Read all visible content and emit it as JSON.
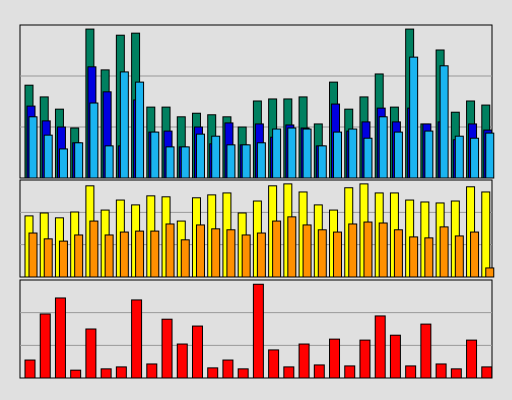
{
  "chart_data": [
    {
      "type": "bar",
      "ylim": [
        0,
        3
      ],
      "yticks": [
        1,
        2
      ],
      "grid": true,
      "series": [
        {
          "color": "#008060",
          "values": [
            1.82,
            1.59,
            1.35,
            0.98,
            2.92,
            2.12,
            2.8,
            2.84,
            1.39,
            1.39,
            1.2,
            1.27,
            1.24,
            1.2,
            1.0,
            1.51,
            1.55,
            1.55,
            1.59,
            1.06,
            1.88,
            1.35,
            1.59,
            2.04,
            1.39,
            2.92,
            1.06,
            2.51,
            1.29,
            1.51,
            1.43
          ]
        },
        {
          "color": "#0000e0",
          "values": [
            1.41,
            1.12,
            1.0,
            0.69,
            2.18,
            1.69,
            0.63,
            1.53,
            0.9,
            0.92,
            0.61,
            1.0,
            0.67,
            1.08,
            0.65,
            1.06,
            0.8,
            1.04,
            0.98,
            0.63,
            1.45,
            0.92,
            1.1,
            1.37,
            1.1,
            1.37,
            1.06,
            1.1,
            0.75,
            1.06,
            0.94
          ]
        },
        {
          "color": "#1ab4f0",
          "values": [
            1.2,
            0.84,
            0.57,
            0.69,
            1.47,
            0.63,
            2.08,
            1.88,
            0.9,
            0.61,
            0.61,
            0.86,
            0.82,
            0.65,
            0.65,
            0.69,
            0.96,
            0.98,
            0.96,
            0.63,
            0.9,
            0.96,
            0.78,
            1.2,
            0.9,
            2.37,
            0.92,
            2.2,
            0.82,
            0.78,
            0.88
          ]
        }
      ]
    },
    {
      "type": "bar",
      "ylim": [
        0,
        3
      ],
      "yticks": [
        1,
        2
      ],
      "grid": true,
      "series": [
        {
          "color": "#ffff00",
          "values": [
            1.89,
            1.98,
            1.83,
            2.01,
            2.82,
            2.07,
            2.38,
            2.23,
            2.51,
            2.48,
            1.73,
            2.45,
            2.54,
            2.6,
            1.98,
            2.35,
            2.82,
            2.88,
            2.63,
            2.23,
            2.07,
            2.76,
            2.88,
            2.6,
            2.6,
            2.38,
            2.32,
            2.29,
            2.35,
            2.79,
            2.63
          ]
        },
        {
          "color": "#ff9000",
          "values": [
            1.36,
            1.18,
            1.11,
            1.3,
            1.73,
            1.3,
            1.39,
            1.42,
            1.42,
            1.64,
            1.15,
            1.61,
            1.49,
            1.46,
            1.3,
            1.36,
            1.73,
            1.86,
            1.61,
            1.46,
            1.39,
            1.64,
            1.7,
            1.67,
            1.46,
            1.24,
            1.21,
            1.55,
            1.27,
            1.39,
            0.28
          ]
        }
      ]
    },
    {
      "type": "bar",
      "ylim": [
        0,
        3
      ],
      "yticks": [
        1,
        2
      ],
      "grid": true,
      "series": [
        {
          "color": "#ff0000",
          "values": [
            0.55,
            1.96,
            2.45,
            0.24,
            1.5,
            0.28,
            0.34,
            2.39,
            0.43,
            1.8,
            1.04,
            1.59,
            0.31,
            0.55,
            0.28,
            2.87,
            0.86,
            0.34,
            1.04,
            0.4,
            1.19,
            0.37,
            1.16,
            1.9,
            1.31,
            0.37,
            1.65,
            0.43,
            0.28,
            1.16,
            0.34
          ]
        }
      ]
    }
  ]
}
